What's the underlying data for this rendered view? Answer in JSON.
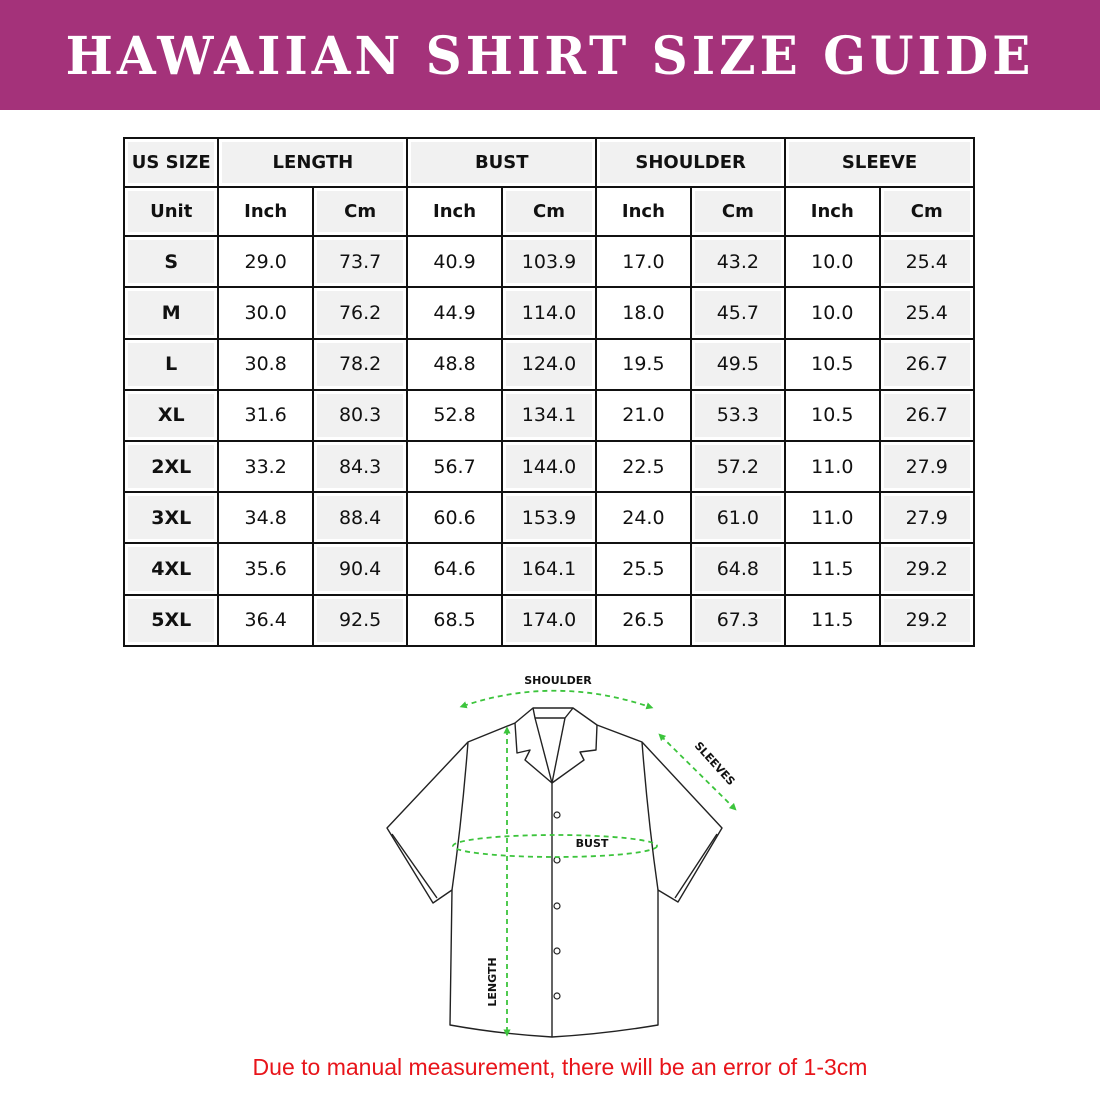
{
  "title": "HAWAIIAN SHIRT SIZE GUIDE",
  "colors": {
    "banner": "#a4327a",
    "note": "#e8141a",
    "measure_lines": "#3cc43c"
  },
  "table": {
    "group_headers": [
      "US SIZE",
      "LENGTH",
      "BUST",
      "SHOULDER",
      "SLEEVE"
    ],
    "unit_row": [
      "Unit",
      "Inch",
      "Cm",
      "Inch",
      "Cm",
      "Inch",
      "Cm",
      "Inch",
      "Cm"
    ],
    "rows": [
      [
        "S",
        "29.0",
        "73.7",
        "40.9",
        "103.9",
        "17.0",
        "43.2",
        "10.0",
        "25.4"
      ],
      [
        "M",
        "30.0",
        "76.2",
        "44.9",
        "114.0",
        "18.0",
        "45.7",
        "10.0",
        "25.4"
      ],
      [
        "L",
        "30.8",
        "78.2",
        "48.8",
        "124.0",
        "19.5",
        "49.5",
        "10.5",
        "26.7"
      ],
      [
        "XL",
        "31.6",
        "80.3",
        "52.8",
        "134.1",
        "21.0",
        "53.3",
        "10.5",
        "26.7"
      ],
      [
        "2XL",
        "33.2",
        "84.3",
        "56.7",
        "144.0",
        "22.5",
        "57.2",
        "11.0",
        "27.9"
      ],
      [
        "3XL",
        "34.8",
        "88.4",
        "60.6",
        "153.9",
        "24.0",
        "61.0",
        "11.0",
        "27.9"
      ],
      [
        "4XL",
        "35.6",
        "90.4",
        "64.6",
        "164.1",
        "25.5",
        "64.8",
        "11.5",
        "29.2"
      ],
      [
        "5XL",
        "36.4",
        "92.5",
        "68.5",
        "174.0",
        "26.5",
        "67.3",
        "11.5",
        "29.2"
      ]
    ]
  },
  "diagram": {
    "shoulder": "SHOULDER",
    "sleeves": "SLEEVES",
    "bust": "BUST",
    "length": "LENGTH"
  },
  "note": "Due to manual measurement, there will be an error of 1-3cm"
}
